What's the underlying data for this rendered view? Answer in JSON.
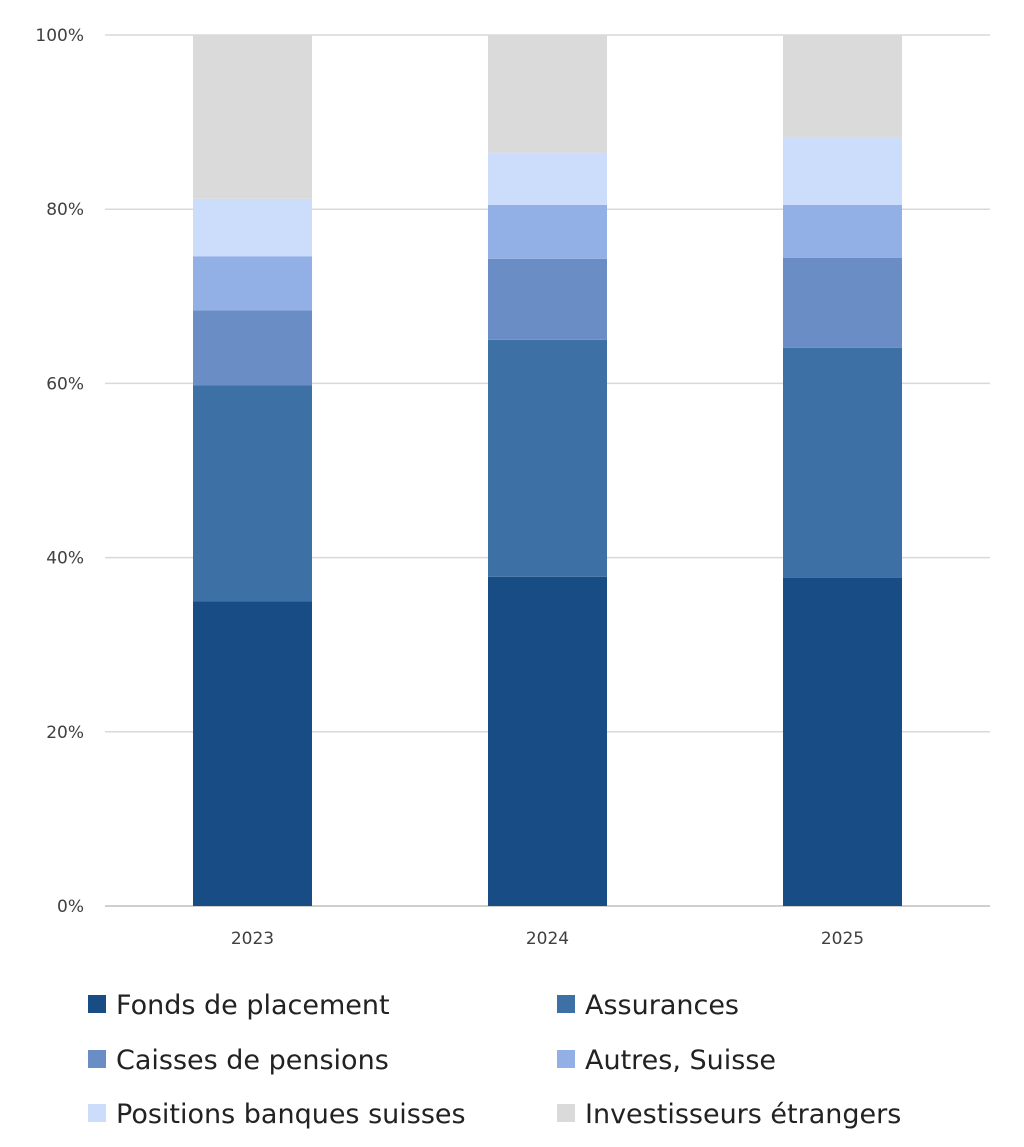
{
  "chart_data": {
    "type": "bar",
    "stacked": true,
    "title": "",
    "xlabel": "",
    "ylabel": "",
    "ylim": [
      0,
      100
    ],
    "y_ticks": [
      "0%",
      "20%",
      "40%",
      "60%",
      "80%",
      "100%"
    ],
    "grid": true,
    "legend_position": "bottom",
    "categories": [
      "2023",
      "2024",
      "2025"
    ],
    "series": [
      {
        "name": "Fonds de placement",
        "color": "#174c84",
        "values": [
          35.0,
          37.8,
          37.7
        ]
      },
      {
        "name": "Assurances",
        "color": "#3d71a5",
        "values": [
          24.8,
          27.2,
          26.4
        ]
      },
      {
        "name": "Caisses de pensions",
        "color": "#6a8dc6",
        "values": [
          8.6,
          9.3,
          10.3
        ]
      },
      {
        "name": "Autres, Suisse",
        "color": "#92b0e5",
        "values": [
          6.2,
          6.2,
          6.1
        ]
      },
      {
        "name": "Positions banques suisses",
        "color": "#ccdcfb",
        "values": [
          6.6,
          6.0,
          7.8
        ]
      },
      {
        "name": "Investisseurs étrangers",
        "color": "#dadada",
        "values": [
          18.8,
          13.5,
          11.7
        ]
      }
    ]
  }
}
